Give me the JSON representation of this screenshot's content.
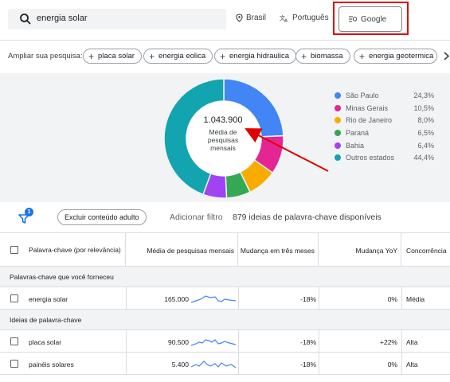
{
  "search": {
    "value": "energia solar"
  },
  "location": {
    "label": "Brasil"
  },
  "language": {
    "label": "Português"
  },
  "network": {
    "label": "Google"
  },
  "broaden": {
    "label": "Ampliar sua pesquisa:",
    "chips": [
      "placa solar",
      "energia eolica",
      "energia hidraulica",
      "biomassa",
      "energia geotermica"
    ]
  },
  "chart_data": {
    "type": "pie",
    "center_value": "1.043.900",
    "center_label": "Média de pesquisas mensais",
    "categories": [
      "São Paulo",
      "Minas Gerais",
      "Rio de Janeiro",
      "Paraná",
      "Bahia",
      "Outros estados"
    ],
    "values": [
      24.3,
      10.5,
      8.0,
      6.5,
      6.4,
      44.4
    ],
    "labels": [
      "24,3%",
      "10,5%",
      "8,0%",
      "6,5%",
      "6,4%",
      "44,4%"
    ],
    "colors": [
      "#4285f4",
      "#e52592",
      "#f9ab00",
      "#34a853",
      "#a142f4",
      "#12a4af"
    ],
    "legend": "right"
  },
  "filters": {
    "badge": "1",
    "exclude_chip": "Excluir conteúdo adulto",
    "add_filter": "Adicionar filtro",
    "ideas_count": "879 ideias de palavra-chave disponíveis"
  },
  "table": {
    "headers": [
      "Palavra-chave (por relevância)",
      "Média de pesquisas mensais",
      "Mudança em três meses",
      "Mudança YoY",
      "Concorrência"
    ],
    "section_provided": "Palavras-chave que você forneceu",
    "section_ideas": "Ideias de palavra-chave",
    "provided_rows": [
      {
        "keyword": "energia solar",
        "avg": "165.000",
        "three_month": "-18%",
        "yoy": "0%",
        "competition": "Média"
      }
    ],
    "idea_rows": [
      {
        "keyword": "placa solar",
        "avg": "90.500",
        "three_month": "-18%",
        "yoy": "+22%",
        "competition": "Alta"
      },
      {
        "keyword": "painéis solares",
        "avg": "5.400",
        "three_month": "-18%",
        "yoy": "0%",
        "competition": "Alta"
      }
    ]
  }
}
